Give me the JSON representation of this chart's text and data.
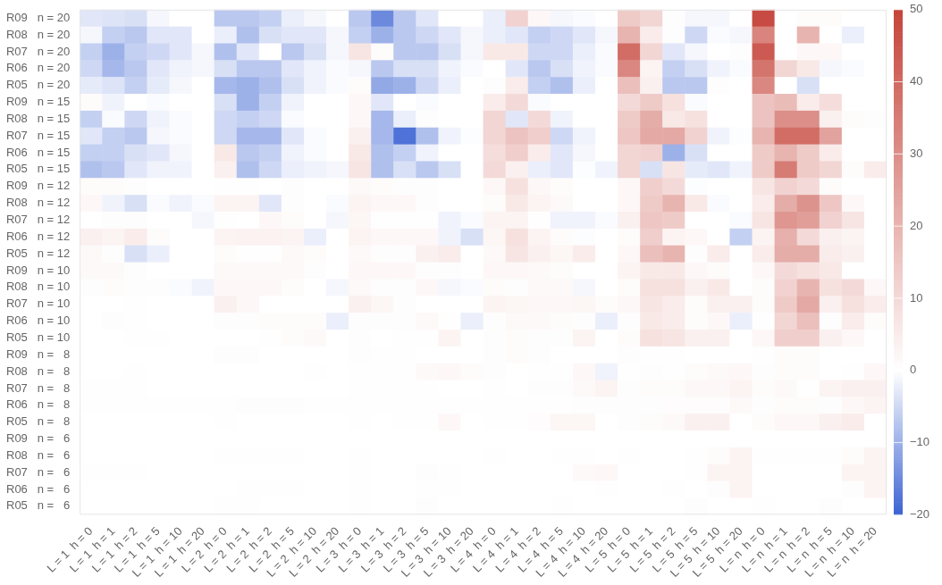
{
  "chart_data": {
    "type": "heatmap",
    "categories": [
      "L = 1  h = 0",
      "L = 1  h = 1",
      "L = 1  h = 2",
      "L = 1  h = 5",
      "L = 1  h = 10",
      "L = 1  h = 20",
      "L = 2  h = 0",
      "L = 2  h = 1",
      "L = 2  h = 2",
      "L = 2  h = 5",
      "L = 2  h = 10",
      "L = 2  h = 20",
      "L = 3  h = 0",
      "L = 3  h = 1",
      "L = 3  h = 2",
      "L = 3  h = 5",
      "L = 3  h = 10",
      "L = 3  h = 20",
      "L = 4  h = 0",
      "L = 4  h = 1",
      "L = 4  h = 2",
      "L = 4  h = 5",
      "L = 4  h = 10",
      "L = 4  h = 20",
      "L = 5  h = 0",
      "L = 5  h = 1",
      "L = 5  h = 2",
      "L = 5  h = 5",
      "L = 5  h = 10",
      "L = 5  h = 20",
      "L = n  h = 0",
      "L = n  h = 1",
      "L = n  h = 2",
      "L = n  h = 5",
      "L = n  h = 10",
      "L = n  h = 20"
    ],
    "y_categories": [
      "R09   n = 20",
      "R08   n = 20",
      "R07   n = 20",
      "R06   n = 20",
      "R05   n = 20",
      "R09   n = 15",
      "R08   n = 15",
      "R07   n = 15",
      "R06   n = 15",
      "R05   n = 15",
      "R09   n = 12",
      "R08   n = 12",
      "R07   n = 12",
      "R06   n = 12",
      "R05   n = 12",
      "R09   n = 10",
      "R08   n = 10",
      "R07   n = 10",
      "R06   n = 10",
      "R05   n = 10",
      "R09   n =   8",
      "R08   n =   8",
      "R07   n =   8",
      "R06   n =   8",
      "R05   n =   8",
      "R09   n =   6",
      "R08   n =   6",
      "R07   n =   6",
      "R06   n =   6",
      "R05   n =   6"
    ],
    "cells": [
      [
        -3,
        -3.5,
        -4,
        -1,
        0,
        0,
        -7,
        -7,
        -6,
        -2,
        -1,
        0,
        -7,
        -15,
        -7,
        -3,
        0,
        0,
        -2,
        12,
        2,
        -1,
        -0.5,
        0,
        14,
        11,
        0.5,
        -1,
        -1,
        0,
        48,
        0,
        1,
        1,
        0,
        0
      ],
      [
        -1,
        -6,
        -7,
        -3,
        -3,
        0,
        -2,
        -8,
        -4,
        -3,
        -3,
        -1,
        -6,
        -10,
        -7,
        -5,
        -3,
        -1,
        -2,
        -3,
        -6,
        -5,
        -3,
        -1,
        20,
        5,
        0.5,
        -5,
        -0.5,
        -1,
        33,
        0,
        20,
        0,
        -2,
        0
      ],
      [
        -6,
        -10,
        -6,
        -5,
        -3,
        -1,
        -8,
        -3,
        0,
        -7,
        -4,
        -1,
        7,
        1,
        -7,
        -7,
        -4,
        -1,
        6,
        6,
        -5,
        -5,
        -2,
        -0.5,
        39,
        11,
        -3,
        -1,
        0,
        0.5,
        44,
        0,
        2,
        2,
        0,
        0
      ],
      [
        -5,
        -9,
        -7,
        -3,
        -1.5,
        -1,
        -4,
        -7,
        -7,
        -3,
        -1.5,
        -0.5,
        -1,
        -7,
        -4,
        -4,
        -1.5,
        -0.5,
        0,
        -3,
        -7,
        -4,
        -1.5,
        -0.5,
        32,
        3,
        -6,
        -4,
        -1.5,
        -0.5,
        37,
        11,
        6,
        -1,
        -0.5,
        0
      ],
      [
        -2.5,
        -3.5,
        -6,
        -2.5,
        -1,
        0,
        -9,
        -10,
        -8,
        -4,
        -1.5,
        -0.5,
        1,
        -11,
        -10,
        -5,
        -2,
        0,
        0.5,
        5,
        -6,
        -8,
        -2,
        0,
        17,
        4,
        -7,
        -7,
        0.5,
        0,
        32,
        0,
        -4,
        0,
        0,
        0
      ],
      [
        1,
        -1.5,
        0,
        -0.5,
        0,
        0,
        -4,
        -10,
        -6,
        -1.5,
        0,
        0,
        2,
        -3,
        0,
        -0.5,
        0,
        0,
        5,
        10,
        -0.5,
        0,
        0,
        0,
        10,
        14,
        8,
        -0.5,
        0,
        0,
        16,
        18,
        5,
        9,
        0,
        0
      ],
      [
        -6,
        -0.5,
        -5,
        -1.5,
        -0.5,
        0,
        -5,
        -6,
        -5,
        -0.5,
        0,
        0,
        2,
        -9,
        -2,
        0.5,
        0,
        0,
        11,
        -3,
        10,
        -1.5,
        0,
        0,
        14,
        22,
        6,
        8,
        0,
        0,
        16,
        30,
        30,
        4,
        1,
        0.5
      ],
      [
        -3,
        -6,
        -7,
        -1,
        -0.5,
        0,
        -5,
        -9,
        -9,
        -3,
        -0.5,
        0,
        4,
        -9,
        -18,
        -8,
        -1.5,
        -0.3,
        11,
        16,
        13,
        -5,
        -1.5,
        0,
        15,
        23,
        23,
        12,
        -1.5,
        -0.3,
        20,
        39,
        39,
        25,
        0,
        0
      ],
      [
        -6,
        -6,
        -4,
        -3,
        -1,
        0,
        6,
        -7,
        -6,
        -1.5,
        -0.5,
        0,
        6,
        -8,
        -6,
        -1.5,
        0,
        0,
        9,
        13,
        5,
        -3,
        -1,
        0,
        11,
        12,
        -10,
        -4,
        0,
        0,
        14,
        20,
        14,
        5,
        0,
        0
      ],
      [
        -8,
        -7,
        -3,
        -1.5,
        -1.5,
        0,
        4,
        -8,
        -5,
        -2,
        -1.5,
        -1,
        7,
        -8,
        -4,
        -7,
        -4,
        0,
        10,
        4,
        -2,
        -3,
        -0.3,
        -1.5,
        11,
        -4,
        7,
        -2.5,
        -3,
        -1.5,
        14,
        35,
        14,
        11,
        1,
        5
      ],
      [
        1,
        1,
        0.5,
        0,
        0,
        0,
        0.3,
        0.3,
        0,
        0.5,
        0,
        0,
        1.5,
        1,
        0.5,
        0.5,
        0,
        0,
        2,
        8,
        2,
        1,
        0,
        0,
        2,
        13,
        10,
        -0.3,
        0,
        0,
        7,
        12,
        10,
        1,
        0,
        0
      ],
      [
        2,
        -1.5,
        -4,
        -0.5,
        -1.5,
        -0.5,
        3,
        3,
        -3,
        0.5,
        0,
        -0.5,
        3,
        2,
        2,
        0.5,
        0,
        0,
        1,
        6,
        3,
        1.5,
        0,
        0,
        2,
        14,
        20,
        6,
        -0.5,
        0,
        5,
        22,
        29,
        15,
        2,
        0
      ],
      [
        0,
        0.5,
        0.5,
        0,
        0,
        -1,
        0.3,
        0,
        2,
        1,
        0,
        -1,
        2.5,
        0.3,
        0.3,
        0.3,
        -1.5,
        -0.5,
        3,
        3,
        0.2,
        -1.5,
        -1.5,
        -0.5,
        4,
        15,
        14,
        0,
        0,
        -0.5,
        7,
        28,
        26,
        12,
        7,
        0
      ],
      [
        4,
        3,
        5,
        1,
        0,
        0,
        3,
        3.5,
        3.5,
        3,
        -2,
        0,
        3,
        2,
        2,
        2,
        -1.5,
        -4,
        2.5,
        8,
        3,
        1,
        -0.3,
        0,
        1,
        13,
        3,
        2,
        0,
        -6,
        3,
        21,
        10,
        4,
        3,
        0
      ],
      [
        1.5,
        0.5,
        -4,
        -2,
        0,
        0,
        1,
        0.2,
        0.2,
        1.5,
        1,
        0,
        1.5,
        0.5,
        0.5,
        4,
        5,
        0,
        1.5,
        7,
        4,
        2.5,
        5,
        0,
        2,
        17,
        20,
        0.5,
        5,
        0,
        5,
        22,
        22,
        5,
        4,
        0
      ],
      [
        1.5,
        1.5,
        0.5,
        0,
        0,
        0,
        1.5,
        1.5,
        1.5,
        1.5,
        0.5,
        0,
        2,
        2,
        2,
        0.5,
        0.5,
        0,
        2,
        2,
        1.5,
        1,
        0,
        0,
        3,
        6,
        6,
        2,
        1,
        0,
        2,
        10,
        8,
        6,
        0,
        0
      ],
      [
        0.5,
        1,
        0.5,
        0.5,
        -0.5,
        -1.5,
        2,
        2,
        2,
        1,
        0,
        -1,
        1.5,
        0.5,
        0.5,
        2,
        -1,
        -0.5,
        1,
        0.5,
        1.5,
        1.5,
        -1,
        0,
        1,
        8,
        8,
        4,
        6,
        0,
        1,
        12,
        20,
        8,
        10,
        2
      ],
      [
        0,
        0,
        0.3,
        0,
        0,
        0,
        4,
        2,
        0,
        0,
        0,
        0,
        4,
        2.5,
        0.5,
        0,
        0,
        0,
        3,
        2.5,
        2,
        2,
        2.5,
        1,
        2,
        7,
        5,
        1,
        4,
        4,
        1,
        14,
        23,
        4,
        8,
        5
      ],
      [
        0,
        0.5,
        0.3,
        0,
        0,
        0,
        0.5,
        0.5,
        1,
        1,
        1,
        -2,
        0.5,
        0.5,
        0.5,
        1.5,
        0.3,
        -2,
        0.5,
        1.5,
        1.5,
        1,
        0.5,
        -2,
        0.5,
        6,
        5,
        1,
        2,
        -2,
        0.3,
        11,
        17,
        0.5,
        5,
        1
      ],
      [
        0,
        0,
        0.3,
        0.3,
        0,
        0,
        0,
        0,
        0.3,
        1,
        1.5,
        0,
        0.5,
        0,
        0.2,
        0.3,
        3,
        0,
        0.5,
        1,
        0.5,
        0.5,
        3,
        0,
        1,
        8,
        7,
        4,
        4,
        0,
        2,
        13,
        13,
        4,
        2,
        0
      ],
      [
        0,
        0,
        0,
        0,
        0,
        0,
        0.5,
        0.5,
        0,
        0,
        0,
        0,
        0.5,
        0.3,
        0.3,
        0,
        0,
        0,
        0.5,
        1,
        0.5,
        0,
        0,
        0,
        0.5,
        0.3,
        0.3,
        0,
        0,
        0,
        0.3,
        1,
        1,
        0,
        0,
        0
      ],
      [
        0,
        0,
        0.3,
        0,
        0,
        0,
        0,
        0,
        0,
        0,
        0.3,
        0,
        0.3,
        0.3,
        0.3,
        1.5,
        2,
        1,
        0.5,
        0,
        0.3,
        0.3,
        2,
        -1.5,
        0.3,
        0.5,
        0.3,
        1,
        1.5,
        2,
        0.5,
        1,
        1,
        0,
        0.3,
        2
      ],
      [
        0.3,
        0.3,
        0.3,
        0,
        0,
        0,
        0,
        0,
        0,
        0,
        0,
        0,
        0.3,
        0.3,
        0.3,
        0.3,
        0,
        0,
        0.3,
        0,
        0.5,
        0.5,
        1.5,
        3,
        0.5,
        1,
        1,
        2,
        2,
        3,
        1,
        1.5,
        0.3,
        3,
        4,
        4
      ],
      [
        0.3,
        0.3,
        0.3,
        0.3,
        0.3,
        0.3,
        0.3,
        0.5,
        0.5,
        0.5,
        0.3,
        0.3,
        0.3,
        0.3,
        0.3,
        0.3,
        0.3,
        0.3,
        0.3,
        0.3,
        0.3,
        0.3,
        0.5,
        0.5,
        0.5,
        0.5,
        0.8,
        0.8,
        0.8,
        1.5,
        0.5,
        1,
        1,
        0.5,
        2,
        3
      ],
      [
        0,
        0,
        0,
        0,
        0,
        0,
        0.3,
        0,
        0,
        0,
        0,
        0,
        0.3,
        0,
        0.3,
        0.3,
        2,
        0,
        0.3,
        0.3,
        0.8,
        2.5,
        2.5,
        0,
        0.5,
        1,
        1.5,
        4,
        4,
        0,
        1,
        2,
        2,
        4,
        5,
        0
      ],
      [
        0,
        0,
        0,
        0,
        0,
        0,
        0,
        0,
        0,
        0,
        0,
        0,
        0,
        0,
        0,
        0,
        0,
        0,
        0,
        0,
        0,
        0,
        0,
        0,
        0,
        0,
        0,
        0,
        0,
        0,
        0,
        0,
        0,
        0,
        0,
        0
      ],
      [
        0,
        0,
        0,
        0,
        0,
        0,
        0.3,
        0.3,
        0.3,
        0.3,
        0,
        0,
        0.3,
        0,
        0,
        0,
        0,
        0,
        0.3,
        0,
        0,
        0.3,
        0.3,
        0,
        0.3,
        0,
        0,
        0.3,
        1,
        3,
        0.3,
        0.3,
        0.3,
        0.3,
        1,
        3
      ],
      [
        0.3,
        0.3,
        0.3,
        0,
        0,
        0,
        0,
        0,
        0,
        0,
        0,
        0,
        0.3,
        0,
        0,
        0.5,
        0.3,
        0,
        0,
        0,
        0,
        0,
        1.5,
        2,
        0,
        0,
        0,
        0.3,
        3,
        3,
        0,
        0,
        0,
        0,
        3,
        3
      ],
      [
        0,
        0,
        0,
        0,
        0,
        0,
        0,
        0.3,
        0.3,
        0.3,
        0,
        0,
        0.3,
        0,
        0,
        0.3,
        0.3,
        0,
        0,
        0,
        0,
        0,
        0,
        0.3,
        0,
        0,
        0.3,
        0,
        0.5,
        3,
        0,
        0,
        0,
        0,
        0.5,
        3
      ],
      [
        0,
        0,
        0,
        0,
        0,
        0,
        0.3,
        0.3,
        0,
        0,
        0,
        0,
        0.3,
        0,
        0,
        0.5,
        0,
        0,
        0,
        0,
        0,
        0.3,
        0,
        0,
        0,
        0,
        0,
        0.5,
        0,
        0,
        0.3,
        0,
        0,
        0.5,
        0,
        0
      ]
    ],
    "clim": [
      -20,
      50
    ],
    "cticks": [
      {
        "value": -20,
        "label": "−20"
      },
      {
        "value": -10,
        "label": "−10"
      },
      0,
      10,
      20,
      30,
      40,
      50
    ]
  }
}
